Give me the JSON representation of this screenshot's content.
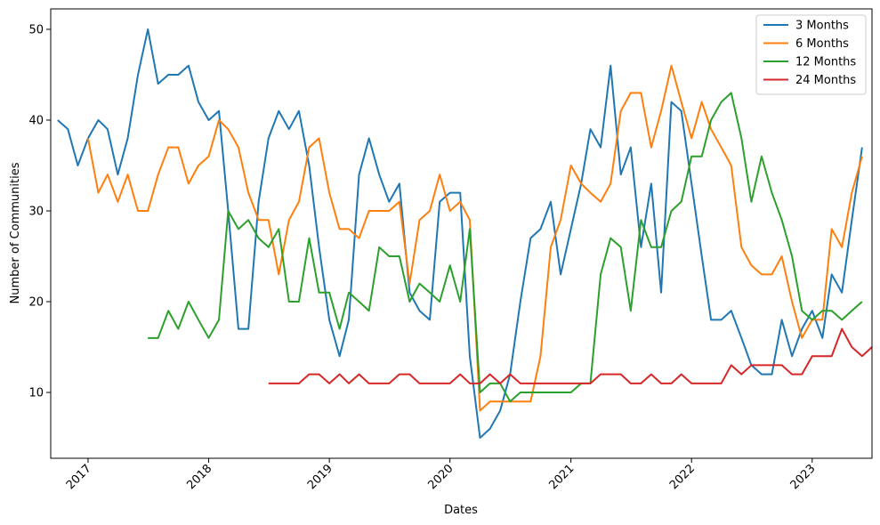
{
  "chart_data": {
    "type": "line",
    "xlabel": "Dates",
    "ylabel": "Number of Communities",
    "x_ticks": [
      "2017",
      "2018",
      "2019",
      "2020",
      "2021",
      "2022",
      "2023"
    ],
    "y_ticks": [
      10,
      20,
      30,
      40,
      50
    ],
    "xlim": [
      "2016-09-10",
      "2023-07-01"
    ],
    "ylim": [
      2.75,
      52.25
    ],
    "grid": false,
    "legend_position": "top-right",
    "series": [
      {
        "name": "3 Months",
        "color": "#1f77b4",
        "start": "2016-10",
        "values": [
          40,
          39,
          35,
          38,
          40,
          39,
          34,
          38,
          45,
          50,
          44,
          45,
          45,
          46,
          42,
          40,
          41,
          30,
          17,
          17,
          31,
          38,
          41,
          39,
          41,
          35,
          26,
          18,
          14,
          18,
          34,
          38,
          34,
          31,
          33,
          21,
          19,
          18,
          31,
          32,
          32,
          14,
          5,
          6,
          8,
          12,
          20,
          27,
          28,
          31,
          23,
          28,
          33,
          39,
          37,
          46,
          34,
          37,
          26,
          33,
          21,
          42,
          41,
          33,
          25,
          18,
          18,
          19,
          16,
          13,
          12,
          12,
          18,
          14,
          17,
          19,
          16,
          23,
          21,
          29,
          37
        ]
      },
      {
        "name": "6 Months",
        "color": "#ff7f0e",
        "start": "2017-01",
        "values": [
          38,
          32,
          34,
          31,
          34,
          30,
          30,
          34,
          37,
          37,
          33,
          35,
          36,
          40,
          39,
          37,
          32,
          29,
          29,
          23,
          29,
          31,
          37,
          38,
          32,
          28,
          28,
          27,
          30,
          30,
          30,
          31,
          22,
          29,
          30,
          34,
          30,
          31,
          29,
          8,
          9,
          9,
          9,
          9,
          9,
          14,
          26,
          29,
          35,
          33,
          32,
          31,
          33,
          41,
          43,
          43,
          37,
          41,
          46,
          42,
          38,
          42,
          39,
          37,
          35,
          26,
          24,
          23,
          23,
          25,
          20,
          16,
          18,
          18,
          28,
          26,
          32,
          36
        ]
      },
      {
        "name": "12 Months",
        "color": "#2ca02c",
        "start": "2017-07",
        "values": [
          16,
          16,
          19,
          17,
          20,
          18,
          16,
          18,
          30,
          28,
          29,
          27,
          26,
          28,
          20,
          20,
          27,
          21,
          21,
          17,
          21,
          20,
          19,
          26,
          25,
          25,
          20,
          22,
          21,
          20,
          24,
          20,
          28,
          10,
          11,
          11,
          9,
          10,
          10,
          10,
          10,
          10,
          10,
          11,
          11,
          23,
          27,
          26,
          19,
          29,
          26,
          26,
          30,
          31,
          36,
          36,
          40,
          42,
          43,
          38,
          31,
          36,
          32,
          29,
          25,
          19,
          18,
          19,
          19,
          18,
          19,
          20
        ]
      },
      {
        "name": "24 Months",
        "color": "#d62728",
        "start": "2018-07",
        "values": [
          11,
          11,
          11,
          11,
          12,
          12,
          11,
          12,
          11,
          12,
          11,
          11,
          11,
          12,
          12,
          11,
          11,
          11,
          11,
          12,
          11,
          11,
          12,
          11,
          12,
          11,
          11,
          11,
          11,
          11,
          11,
          11,
          11,
          12,
          12,
          12,
          11,
          11,
          12,
          11,
          11,
          12,
          11,
          11,
          11,
          11,
          13,
          12,
          13,
          13,
          13,
          13,
          12,
          12,
          14,
          14,
          14,
          17,
          15,
          14,
          15
        ]
      }
    ]
  }
}
